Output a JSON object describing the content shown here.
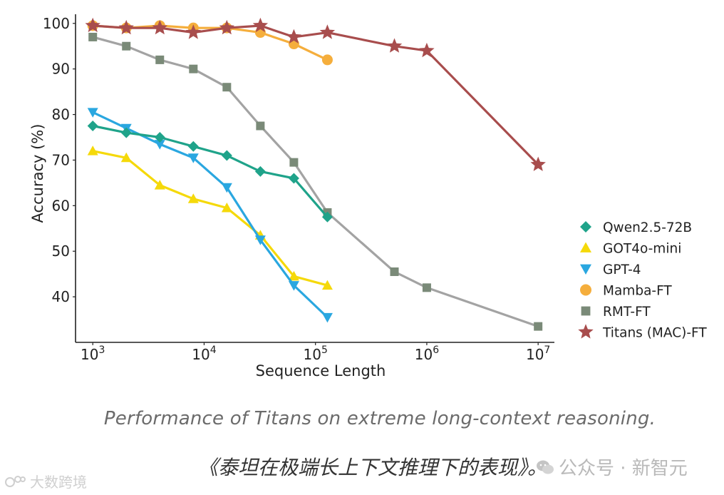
{
  "chart_data": {
    "type": "line",
    "xscale": "log",
    "xlabel": "Sequence Length",
    "ylabel": "Accuracy (%)",
    "xlim": [
      700,
      14000000
    ],
    "ylim": [
      30,
      102
    ],
    "yticks": [
      40,
      50,
      60,
      70,
      80,
      90,
      100
    ],
    "xticks": [
      {
        "value": 1000,
        "base": "10",
        "exp": "3"
      },
      {
        "value": 10000,
        "base": "10",
        "exp": "4"
      },
      {
        "value": 100000,
        "base": "10",
        "exp": "5"
      },
      {
        "value": 1000000,
        "base": "10",
        "exp": "6"
      },
      {
        "value": 10000000,
        "base": "10",
        "exp": "7"
      }
    ],
    "legend_position": "right",
    "series": [
      {
        "name": "Qwen2.5-72B",
        "color": "#1fa38a",
        "marker": "diamond",
        "x": [
          1000,
          2000,
          4000,
          8000,
          16000,
          32000,
          64000,
          128000
        ],
        "y": [
          77.5,
          76,
          75,
          73,
          71,
          67.5,
          66,
          57.5
        ]
      },
      {
        "name": "GOT4o-mini",
        "color": "#f5d90a",
        "marker": "triangle-up",
        "x": [
          1000,
          2000,
          4000,
          8000,
          16000,
          32000,
          64000,
          128000
        ],
        "y": [
          72,
          70.5,
          64.5,
          61.5,
          59.5,
          53.5,
          44.5,
          42.5
        ]
      },
      {
        "name": "GPT-4",
        "color": "#2aa7e0",
        "marker": "triangle-down",
        "x": [
          1000,
          2000,
          4000,
          8000,
          16000,
          32000,
          64000,
          128000
        ],
        "y": [
          80.5,
          77,
          73.5,
          70.5,
          64,
          52.5,
          42.5,
          35.5
        ]
      },
      {
        "name": "Mamba-FT",
        "color": "#f5ae3c",
        "marker": "circle",
        "x": [
          1000,
          2000,
          4000,
          8000,
          16000,
          32000,
          64000,
          128000
        ],
        "y": [
          99.5,
          99,
          99.5,
          99,
          99,
          98,
          95.5,
          92
        ]
      },
      {
        "name": "RMT-FT",
        "color": "#7a8a78",
        "line_color": "#a3a3a3",
        "marker": "square",
        "x": [
          1000,
          2000,
          4000,
          8000,
          16000,
          32000,
          64000,
          128000,
          512000,
          1000000,
          10000000
        ],
        "y": [
          97,
          95,
          92,
          90,
          86,
          77.5,
          69.5,
          58.5,
          45.5,
          42,
          33.5
        ]
      },
      {
        "name": "Titans (MAC)-FT",
        "color": "#a84d4d",
        "marker": "star",
        "x": [
          1000,
          2000,
          4000,
          8000,
          16000,
          32000,
          64000,
          128000,
          512000,
          1000000,
          10000000
        ],
        "y": [
          99.5,
          99,
          99,
          98,
          99,
          99.5,
          97,
          98,
          95,
          94,
          69
        ]
      }
    ]
  },
  "captions": {
    "english": "Performance of Titans on extreme long-context reasoning.",
    "chinese": "《泰坦在极端长上下文推理下的表现》。"
  },
  "watermarks": {
    "right": "公众号 · 新智元",
    "left": "大数跨境"
  }
}
